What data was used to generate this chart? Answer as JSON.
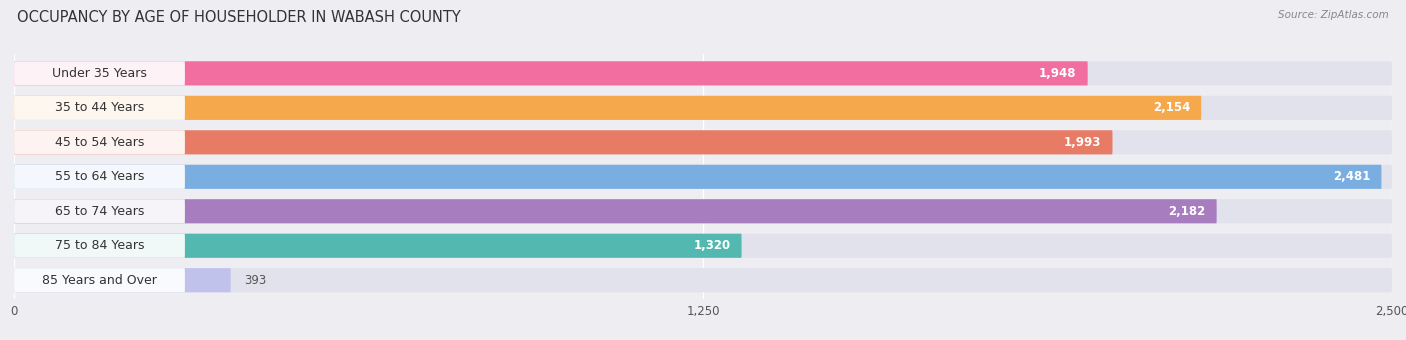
{
  "title": "OCCUPANCY BY AGE OF HOUSEHOLDER IN WABASH COUNTY",
  "source": "Source: ZipAtlas.com",
  "categories": [
    "Under 35 Years",
    "35 to 44 Years",
    "45 to 54 Years",
    "55 to 64 Years",
    "65 to 74 Years",
    "75 to 84 Years",
    "85 Years and Over"
  ],
  "values": [
    1948,
    2154,
    1993,
    2481,
    2182,
    1320,
    393
  ],
  "bar_colors": [
    "#F26EA0",
    "#F5A84C",
    "#E87B65",
    "#7AAEE0",
    "#A87DC0",
    "#52B8B0",
    "#C0C2EC"
  ],
  "xlim": [
    0,
    2500
  ],
  "xticks": [
    0,
    1250,
    2500
  ],
  "background_color": "#EDEDF2",
  "bar_bg_color": "#E2E2EC",
  "title_fontsize": 10.5,
  "label_fontsize": 9,
  "value_fontsize": 8.5,
  "bar_height": 0.7,
  "bar_gap": 0.3
}
